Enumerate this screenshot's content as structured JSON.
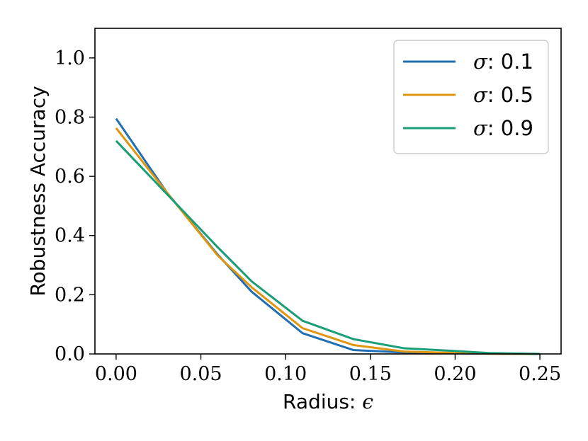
{
  "chart_data": {
    "type": "line",
    "title": "",
    "xlabel_text": "Radius: ",
    "xlabel_symbol": "ϵ",
    "ylabel": "Robustness Accuracy",
    "xlim": [
      -0.0125,
      0.2625
    ],
    "ylim": [
      0.0,
      1.1
    ],
    "x_ticks": [
      "0.00",
      "0.05",
      "0.10",
      "0.15",
      "0.20",
      "0.25"
    ],
    "y_ticks": [
      "0.0",
      "0.2",
      "0.4",
      "0.6",
      "0.8",
      "1.0"
    ],
    "grid": false,
    "legend_position": "top-right",
    "x": [
      0.0,
      0.03,
      0.06,
      0.08,
      0.11,
      0.14,
      0.17,
      0.2,
      0.22,
      0.25
    ],
    "series": [
      {
        "symbol": "σ",
        "name": ": 0.1",
        "color": "#1f6fb4",
        "values": [
          0.795,
          0.545,
          0.335,
          0.21,
          0.07,
          0.013,
          0.005,
          0.002,
          0.001,
          0.0
        ]
      },
      {
        "symbol": "σ",
        "name": ": 0.5",
        "color": "#e0950f",
        "values": [
          0.763,
          0.545,
          0.332,
          0.225,
          0.087,
          0.03,
          0.008,
          0.003,
          0.001,
          0.0
        ]
      },
      {
        "symbol": "σ",
        "name": ": 0.9",
        "color": "#1a9e77",
        "values": [
          0.72,
          0.54,
          0.36,
          0.245,
          0.112,
          0.05,
          0.019,
          0.01,
          0.003,
          0.0
        ]
      }
    ]
  }
}
